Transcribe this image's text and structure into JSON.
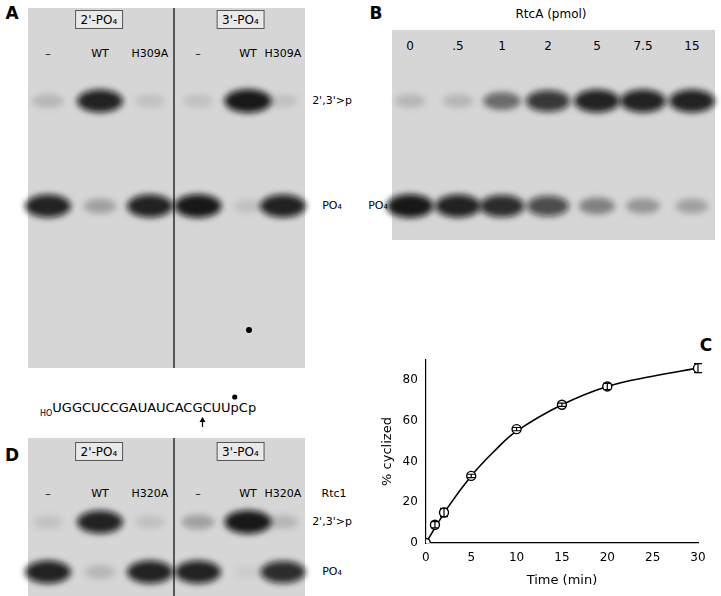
{
  "gels": [
    {
      "panel": "A",
      "groups": [
        {
          "label": "2'-PO₄",
          "lanes": [
            "–",
            "WT",
            "H309A"
          ]
        },
        {
          "label": "3'-PO₄",
          "lanes": [
            "–",
            "WT",
            "H309A"
          ]
        }
      ],
      "band_labels": [
        "2',3'>p",
        "PO₄"
      ],
      "intensities": [
        [
          0.15,
          0.9
        ],
        [
          0.9,
          0.25
        ],
        [
          0.1,
          0.9
        ],
        [
          0.1,
          0.95
        ],
        [
          0.95,
          0.1
        ],
        [
          0.1,
          0.9
        ]
      ]
    },
    {
      "panel": "B",
      "title": "RtcA (pmol)",
      "lanes": [
        "0",
        ".5",
        "1",
        "2",
        "5",
        "7.5",
        "15"
      ],
      "band_labels": [
        null,
        "PO₄"
      ],
      "intensities": [
        [
          0.15,
          0.95
        ],
        [
          0.15,
          0.9
        ],
        [
          0.5,
          0.85
        ],
        [
          0.8,
          0.7
        ],
        [
          0.9,
          0.4
        ],
        [
          0.9,
          0.3
        ],
        [
          0.9,
          0.25
        ]
      ]
    },
    {
      "panel": "D",
      "enzyme": "Rtc1",
      "groups": [
        {
          "label": "2'-PO₄",
          "lanes": [
            "–",
            "WT",
            "H320A"
          ]
        },
        {
          "label": "3'-PO₄",
          "lanes": [
            "–",
            "WT",
            "H320A"
          ]
        }
      ],
      "band_labels": [
        "2',3'>p",
        "PO₄"
      ],
      "intensities": [
        [
          0.1,
          0.9
        ],
        [
          0.9,
          0.15
        ],
        [
          0.1,
          0.9
        ],
        [
          0.25,
          0.9
        ],
        [
          0.95,
          0.05
        ],
        [
          0.15,
          0.85
        ]
      ]
    }
  ],
  "sequence": {
    "prefix": "HO",
    "text": "UGGCUCCGAUAUCACGCUUpCp"
  },
  "chart_data": {
    "panel": "C",
    "type": "scatter",
    "x_label": "Time (min)",
    "y_label": "% cyclized",
    "xlim": [
      0,
      30
    ],
    "xticks": [
      0,
      5,
      10,
      15,
      20,
      25,
      30
    ],
    "ylim": [
      0,
      90
    ],
    "yticks": [
      0,
      20,
      40,
      60,
      80
    ],
    "grid": false,
    "series": [
      {
        "type": "scatter",
        "marker": "open_circle",
        "color": "#000000",
        "x": [
          0,
          1,
          2,
          5,
          10,
          15,
          20,
          30
        ],
        "values": [
          0,
          9,
          15,
          33,
          56,
          68,
          77,
          86
        ],
        "errors": [
          0,
          1.5,
          2,
          0.8,
          0.8,
          0.8,
          1.5,
          2.2
        ]
      },
      {
        "type": "line",
        "line_style": "solid",
        "color": "#000000",
        "x": [
          0,
          2.5,
          5,
          7.5,
          10,
          15,
          20,
          25,
          30
        ],
        "values": [
          0,
          18,
          33,
          45,
          55,
          68,
          77,
          82,
          86
        ]
      }
    ]
  }
}
